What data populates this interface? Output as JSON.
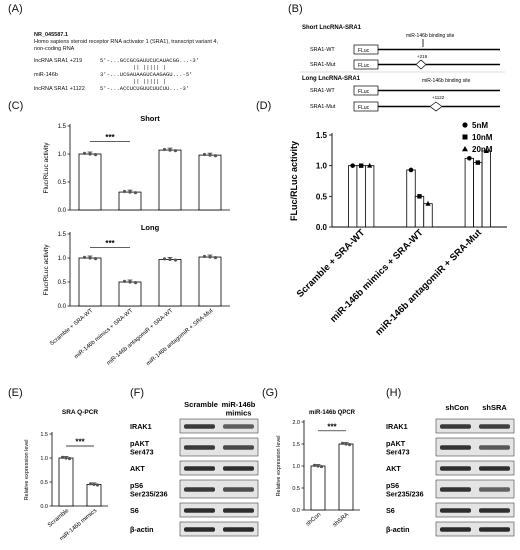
{
  "panels": {
    "A": "(A)",
    "B": "(B)",
    "C": "(C)",
    "D": "(D)",
    "E": "(E)",
    "F": "(F)",
    "G": "(G)",
    "H": "(H)"
  },
  "panelA": {
    "accession": "NR_045587.1",
    "description_line1": "Homo sapiens steroid receptor RNA activator 1 (SRA1), transcript variant 4,",
    "description_line2": "non-coding RNA",
    "row1_name": "lncRNA SRA1  +219",
    "row1_seq": "5'-...GCCGCGAUUCUCAUACGG...-3'",
    "bars": "||   ||||| |",
    "row2_name": "miR-146b",
    "row2_seq": "3'-...UCGAUAAGUCAAGAGU...-5'",
    "bars2": "||   ||||| |",
    "row3_name": "lncRNA SRA1  +1122",
    "row3_seq": "5'-...ACCUCUGUUCUUCUU...-3'"
  },
  "panelB": {
    "short_title": "Short LncRNA-SRA1",
    "long_title": "Long LncRNA-SRA1",
    "binding_site": "miR-146b binding site",
    "wt": "SRA1-WT",
    "mut": "SRA1-Mut",
    "fluc": "FLuc",
    "pos_short": "+219",
    "pos_long": "+1122"
  },
  "chart_data": [
    {
      "id": "C-short",
      "type": "bar",
      "title": "Short",
      "ylabel": "Fluc/RLuc activity",
      "ylim": [
        0,
        1.5
      ],
      "yticks": [
        "0.0",
        "0.5",
        "1.0",
        "1.5"
      ],
      "categories": [
        "Scramble + SRA-WT",
        "miR-146b mimics + SRA-WT",
        "miR-146b antagomiR + SRA-WT",
        "miR-146b antagomiR + SRA-Mut"
      ],
      "values": [
        1.0,
        0.32,
        1.07,
        0.98
      ],
      "significance": "***"
    },
    {
      "id": "C-long",
      "type": "bar",
      "title": "Long",
      "ylabel": "Fluc/RLuc activity",
      "ylim": [
        0,
        1.5
      ],
      "yticks": [
        "0.0",
        "0.5",
        "1.0",
        "1.5"
      ],
      "categories": [
        "Scramble + SRA-WT",
        "miR-146b mimics + SRA-WT",
        "miR-146b antagomiR + SRA-WT",
        "miR-146b antagomiR + SRA-Mut"
      ],
      "values": [
        1.0,
        0.5,
        0.97,
        1.02
      ],
      "significance": "***"
    },
    {
      "id": "D",
      "type": "bar",
      "ylabel": "FLuc/RLuc activity",
      "ylim": [
        0,
        1.5
      ],
      "yticks": [
        "0.0",
        "0.5",
        "1.0",
        "1.5"
      ],
      "categories": [
        "Scramble + SRA-WT",
        "miR-146b mimics + SRA-WT",
        "miR-146b antagomiR + SRA-Mut"
      ],
      "series": [
        {
          "name": "5nM",
          "marker": "●",
          "values": [
            1.0,
            0.93,
            1.12
          ]
        },
        {
          "name": "10nM",
          "marker": "■",
          "values": [
            1.0,
            0.5,
            1.05
          ]
        },
        {
          "name": "20nM",
          "marker": "▲",
          "values": [
            1.0,
            0.38,
            1.24
          ]
        }
      ],
      "legend": "top-right"
    },
    {
      "id": "E",
      "type": "bar",
      "title": "SRA Q-PCR",
      "ylabel": "Relative expression level",
      "ylim": [
        0,
        1.5
      ],
      "yticks": [
        "0.0",
        "0.5",
        "1.0",
        "1.5"
      ],
      "categories": [
        "Scramble",
        "miR-146b mimics"
      ],
      "values": [
        1.0,
        0.45
      ],
      "significance": "***"
    },
    {
      "id": "G",
      "type": "bar",
      "title": "miR-146b QPCR",
      "ylabel": "Relative expression level",
      "ylim": [
        0,
        2.0
      ],
      "yticks": [
        "0.0",
        "0.5",
        "1.0",
        "1.5",
        "2.0"
      ],
      "categories": [
        "shCon",
        "shSRA"
      ],
      "values": [
        1.0,
        1.5
      ],
      "significance": "***"
    }
  ],
  "blotF": {
    "columns": [
      "Scramble",
      "miR-146b\nmimics"
    ],
    "rows": [
      "IRAK1",
      "pAKT\nSer473",
      "AKT",
      "pS6\nSer235/236",
      "S6",
      "β-actin"
    ]
  },
  "blotH": {
    "columns": [
      "shCon",
      "shSRA"
    ],
    "rows": [
      "IRAK1",
      "pAKT\nSer473",
      "AKT",
      "pS6\nSer235/236",
      "S6",
      "β-actin"
    ]
  }
}
